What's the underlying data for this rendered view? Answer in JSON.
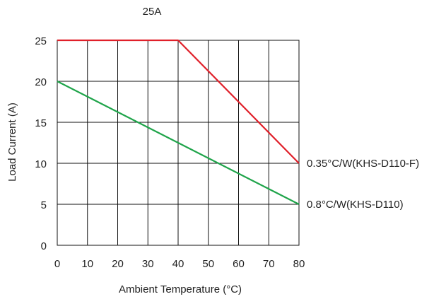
{
  "chart_data": {
    "type": "line",
    "title": "25A",
    "xlabel": "Ambient Temperature (°C)",
    "ylabel": "Load Current (A)",
    "xlim": [
      0,
      80
    ],
    "ylim": [
      0,
      25
    ],
    "x_ticks": [
      0,
      10,
      20,
      30,
      40,
      50,
      60,
      70,
      80
    ],
    "y_ticks": [
      0,
      5,
      10,
      15,
      20,
      25
    ],
    "x_tick_labels": [
      "0",
      "10",
      "20",
      "30",
      "40",
      "50",
      "60",
      "70",
      "80"
    ],
    "y_tick_labels": [
      "0",
      "5",
      "10",
      "15",
      "20",
      "25"
    ],
    "grid": true,
    "legend": "inline labels at line ends (right)",
    "series": [
      {
        "name": "0.35°C/W(KHS-D110-F)",
        "color": "#e0202a",
        "points": [
          [
            0,
            25
          ],
          [
            40,
            25
          ],
          [
            80,
            10
          ]
        ]
      },
      {
        "name": "0.8°C/W(KHS-D110)",
        "color": "#1fa44a",
        "points": [
          [
            0,
            20
          ],
          [
            80,
            5
          ]
        ]
      }
    ]
  }
}
